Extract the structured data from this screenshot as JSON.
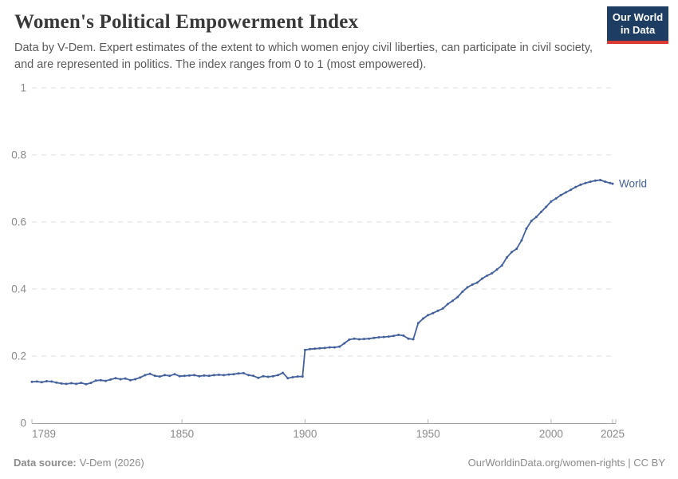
{
  "header": {
    "title": "Women's Political Empowerment Index",
    "subtitle": "Data by V-Dem. Expert estimates of the extent to which women enjoy civil liberties, can participate in civil society, and are represented in politics. The index ranges from 0 to 1 (most empowered).",
    "logo": {
      "line1": "Our World",
      "line2": "in Data",
      "bg": "#1d3d63",
      "stripe": "#d93a34"
    }
  },
  "footer": {
    "source_label": "Data source:",
    "source_value": "V-Dem (2026)",
    "link": "OurWorldinData.org/women-rights | CC BY"
  },
  "colors": {
    "grid": "#dcdcdc",
    "axis": "#a3a3a3",
    "tick": "#b8b8b8",
    "tick_text": "#8a8a8a"
  },
  "chart_data": {
    "type": "line",
    "title": "Women's Political Empowerment Index",
    "xlabel": "",
    "ylabel": "",
    "xlim": [
      1789,
      2025
    ],
    "ylim": [
      0,
      1
    ],
    "grid": "horizontal-dashed",
    "legend_position": "end-of-line",
    "xticks": [
      {
        "v": 1789,
        "label": "1789"
      },
      {
        "v": 1850,
        "label": "1850"
      },
      {
        "v": 1900,
        "label": "1900"
      },
      {
        "v": 1950,
        "label": "1950"
      },
      {
        "v": 2000,
        "label": "2000"
      },
      {
        "v": 2025,
        "label": "2025"
      }
    ],
    "yticks": [
      {
        "v": 0,
        "label": "0"
      },
      {
        "v": 0.2,
        "label": "0.2"
      },
      {
        "v": 0.4,
        "label": "0.4"
      },
      {
        "v": 0.6,
        "label": "0.6"
      },
      {
        "v": 0.8,
        "label": "0.8"
      },
      {
        "v": 1,
        "label": "1"
      }
    ],
    "series": [
      {
        "name": "World",
        "color": "#44619c",
        "points": [
          [
            1789,
            0.123
          ],
          [
            1791,
            0.124
          ],
          [
            1793,
            0.122
          ],
          [
            1795,
            0.125
          ],
          [
            1797,
            0.124
          ],
          [
            1799,
            0.121
          ],
          [
            1801,
            0.118
          ],
          [
            1803,
            0.117
          ],
          [
            1805,
            0.119
          ],
          [
            1807,
            0.117
          ],
          [
            1809,
            0.12
          ],
          [
            1811,
            0.116
          ],
          [
            1813,
            0.12
          ],
          [
            1815,
            0.127
          ],
          [
            1817,
            0.128
          ],
          [
            1819,
            0.126
          ],
          [
            1821,
            0.13
          ],
          [
            1823,
            0.134
          ],
          [
            1825,
            0.131
          ],
          [
            1827,
            0.133
          ],
          [
            1829,
            0.128
          ],
          [
            1831,
            0.131
          ],
          [
            1833,
            0.136
          ],
          [
            1835,
            0.143
          ],
          [
            1837,
            0.147
          ],
          [
            1839,
            0.141
          ],
          [
            1841,
            0.139
          ],
          [
            1843,
            0.143
          ],
          [
            1845,
            0.141
          ],
          [
            1847,
            0.146
          ],
          [
            1849,
            0.14
          ],
          [
            1851,
            0.141
          ],
          [
            1853,
            0.142
          ],
          [
            1855,
            0.143
          ],
          [
            1857,
            0.14
          ],
          [
            1859,
            0.142
          ],
          [
            1861,
            0.141
          ],
          [
            1863,
            0.143
          ],
          [
            1865,
            0.144
          ],
          [
            1867,
            0.143
          ],
          [
            1869,
            0.145
          ],
          [
            1871,
            0.146
          ],
          [
            1873,
            0.148
          ],
          [
            1875,
            0.149
          ],
          [
            1877,
            0.143
          ],
          [
            1879,
            0.141
          ],
          [
            1881,
            0.135
          ],
          [
            1883,
            0.14
          ],
          [
            1885,
            0.138
          ],
          [
            1887,
            0.14
          ],
          [
            1889,
            0.143
          ],
          [
            1891,
            0.15
          ],
          [
            1893,
            0.134
          ],
          [
            1895,
            0.137
          ],
          [
            1897,
            0.139
          ],
          [
            1899,
            0.139
          ],
          [
            1900,
            0.218
          ],
          [
            1902,
            0.221
          ],
          [
            1904,
            0.222
          ],
          [
            1906,
            0.223
          ],
          [
            1908,
            0.224
          ],
          [
            1910,
            0.226
          ],
          [
            1912,
            0.226
          ],
          [
            1914,
            0.228
          ],
          [
            1916,
            0.238
          ],
          [
            1918,
            0.249
          ],
          [
            1920,
            0.252
          ],
          [
            1922,
            0.25
          ],
          [
            1924,
            0.251
          ],
          [
            1926,
            0.252
          ],
          [
            1928,
            0.254
          ],
          [
            1930,
            0.256
          ],
          [
            1932,
            0.257
          ],
          [
            1934,
            0.258
          ],
          [
            1936,
            0.26
          ],
          [
            1938,
            0.263
          ],
          [
            1940,
            0.261
          ],
          [
            1942,
            0.252
          ],
          [
            1944,
            0.25
          ],
          [
            1946,
            0.298
          ],
          [
            1948,
            0.312
          ],
          [
            1950,
            0.322
          ],
          [
            1952,
            0.328
          ],
          [
            1954,
            0.335
          ],
          [
            1956,
            0.342
          ],
          [
            1958,
            0.355
          ],
          [
            1960,
            0.365
          ],
          [
            1962,
            0.376
          ],
          [
            1964,
            0.392
          ],
          [
            1966,
            0.405
          ],
          [
            1968,
            0.413
          ],
          [
            1970,
            0.419
          ],
          [
            1972,
            0.431
          ],
          [
            1974,
            0.44
          ],
          [
            1976,
            0.447
          ],
          [
            1978,
            0.458
          ],
          [
            1980,
            0.47
          ],
          [
            1982,
            0.494
          ],
          [
            1984,
            0.51
          ],
          [
            1986,
            0.52
          ],
          [
            1988,
            0.545
          ],
          [
            1990,
            0.58
          ],
          [
            1992,
            0.603
          ],
          [
            1994,
            0.615
          ],
          [
            1996,
            0.63
          ],
          [
            1998,
            0.645
          ],
          [
            2000,
            0.661
          ],
          [
            2002,
            0.67
          ],
          [
            2004,
            0.68
          ],
          [
            2006,
            0.688
          ],
          [
            2008,
            0.696
          ],
          [
            2010,
            0.704
          ],
          [
            2012,
            0.711
          ],
          [
            2014,
            0.716
          ],
          [
            2016,
            0.72
          ],
          [
            2018,
            0.723
          ],
          [
            2020,
            0.725
          ],
          [
            2022,
            0.72
          ],
          [
            2024,
            0.716
          ],
          [
            2025,
            0.714
          ]
        ]
      }
    ]
  }
}
